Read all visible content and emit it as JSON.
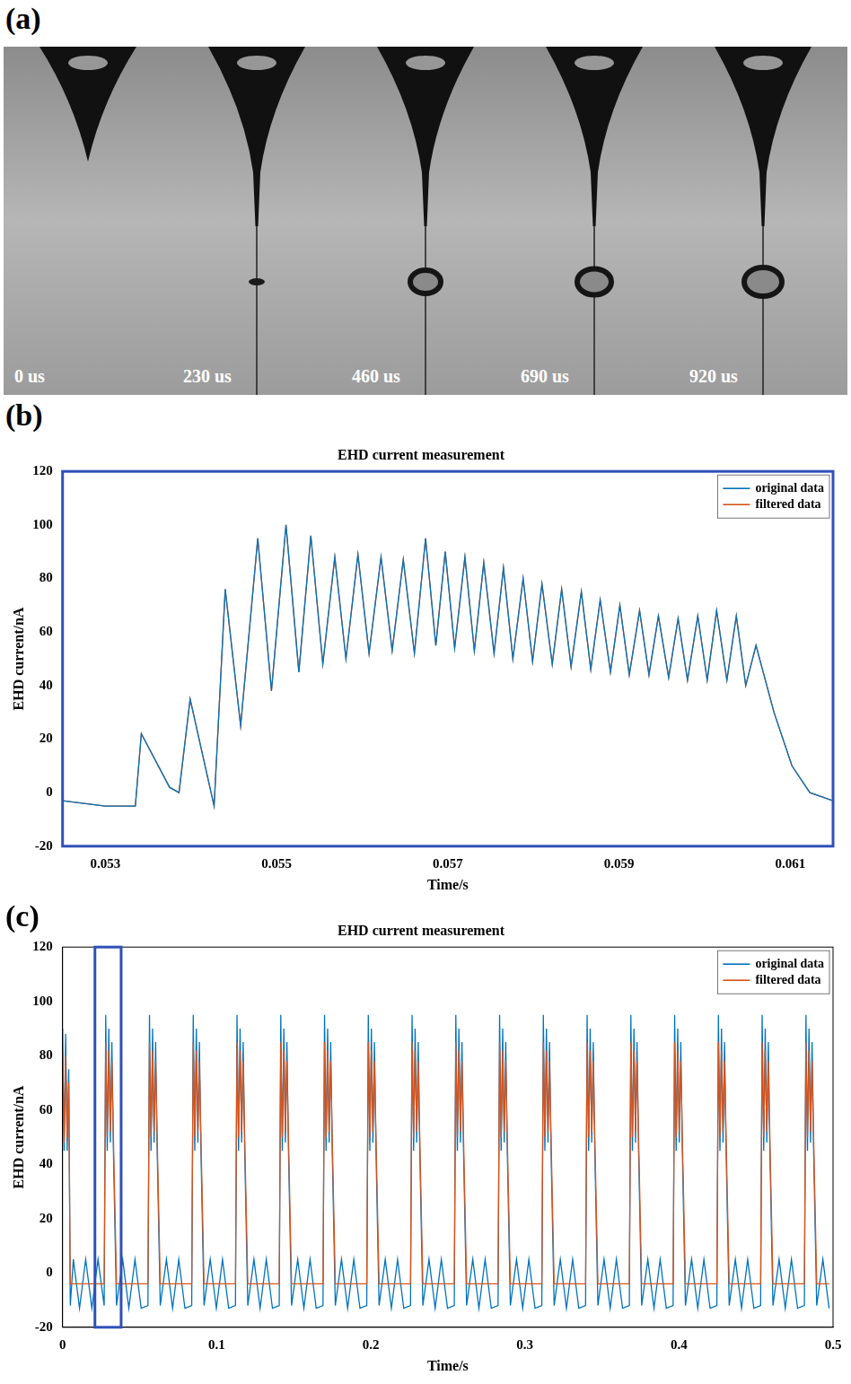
{
  "figure": {
    "panels": [
      "(a)",
      "(b)",
      "(c)"
    ],
    "frames": [
      "0 us",
      "230 us",
      "460 us",
      "690 us",
      "920 us"
    ]
  },
  "chart_data": [
    {
      "type": "line",
      "title": "EHD current measurement",
      "x_label": "Time/s",
      "y_label": "EHD current/nA",
      "x": [
        0.0525,
        0.053,
        0.05335,
        0.05342,
        0.05375,
        0.05386,
        0.05399,
        0.05427,
        0.0544,
        0.05458,
        0.05478,
        0.05494,
        0.05511,
        0.05526,
        0.0554,
        0.05554,
        0.05568,
        0.05581,
        0.05595,
        0.05608,
        0.05622,
        0.05635,
        0.05648,
        0.05661,
        0.05674,
        0.05686,
        0.05697,
        0.05708,
        0.0572,
        0.05731,
        0.05742,
        0.05754,
        0.05765,
        0.05776,
        0.05788,
        0.05799,
        0.0581,
        0.05822,
        0.05833,
        0.05844,
        0.05856,
        0.05867,
        0.05878,
        0.0589,
        0.05901,
        0.05912,
        0.05924,
        0.05935,
        0.05946,
        0.05958,
        0.05969,
        0.0598,
        0.05992,
        0.06003,
        0.06014,
        0.06026,
        0.06037,
        0.06048,
        0.0606,
        0.06081,
        0.06102,
        0.06123,
        0.0615
      ],
      "series": [
        {
          "name": "original data",
          "color": "#0072bd",
          "values": [
            -3,
            -5,
            -5,
            22,
            2,
            0,
            35,
            -5,
            76,
            25,
            95,
            38,
            100,
            45,
            96,
            48,
            88,
            50,
            89,
            52,
            88,
            53,
            87,
            52,
            95,
            55,
            90,
            54,
            88,
            53,
            86,
            52,
            84,
            50,
            80,
            49,
            78,
            48,
            76,
            47,
            75,
            46,
            72,
            45,
            70,
            44,
            68,
            44,
            66,
            43,
            65,
            42,
            66,
            42,
            68,
            42,
            66,
            40,
            55,
            30,
            10,
            0,
            -3
          ]
        },
        {
          "name": "filtered data",
          "color": "#d95319",
          "values": [
            -3,
            -5,
            -5,
            22,
            2,
            0,
            35,
            -5,
            76,
            25,
            95,
            38,
            100,
            45,
            96,
            48,
            88,
            50,
            89,
            52,
            88,
            53,
            87,
            52,
            95,
            55,
            90,
            54,
            88,
            53,
            86,
            52,
            84,
            50,
            80,
            49,
            78,
            48,
            76,
            47,
            75,
            46,
            72,
            45,
            70,
            44,
            68,
            44,
            66,
            43,
            65,
            42,
            66,
            42,
            68,
            42,
            66,
            40,
            55,
            30,
            10,
            0,
            -3
          ]
        }
      ],
      "xlim": [
        0.0525,
        0.0615
      ],
      "xticks": [
        0.053,
        0.055,
        0.057,
        0.059,
        0.061
      ],
      "ylim": [
        -20,
        120
      ],
      "yticks": [
        -20,
        0,
        20,
        40,
        60,
        80,
        100,
        120
      ],
      "grid": false,
      "legend": "upper right"
    },
    {
      "type": "line",
      "title": "EHD current measurement",
      "x_label": "Time/s",
      "y_label": "EHD current/nA",
      "x": [
        0,
        0.001,
        0.002,
        0.003,
        0.004,
        0.005,
        0.007,
        0.011,
        0.015,
        0.019,
        0.023,
        0.027,
        0.028,
        0.029,
        0.03,
        0.031,
        0.032,
        0.033,
        0.035,
        0.039,
        0.043,
        0.047,
        0.051,
        0.0554,
        0.0564,
        0.0574,
        0.0584,
        0.0594,
        0.0604,
        0.0614,
        0.0634,
        0.0674,
        0.0714,
        0.0754,
        0.0794,
        0.0838,
        0.0848,
        0.0858,
        0.0868,
        0.0878,
        0.0888,
        0.0898,
        0.0918,
        0.0958,
        0.0998,
        0.1038,
        0.1078,
        0.1122,
        0.1132,
        0.1142,
        0.1152,
        0.1162,
        0.1172,
        0.1182,
        0.1202,
        0.1242,
        0.1282,
        0.1322,
        0.1362,
        0.1406,
        0.1416,
        0.1426,
        0.1436,
        0.1446,
        0.1456,
        0.1466,
        0.1486,
        0.1526,
        0.1566,
        0.1606,
        0.1646,
        0.169,
        0.17,
        0.171,
        0.172,
        0.173,
        0.174,
        0.175,
        0.177,
        0.181,
        0.185,
        0.189,
        0.193,
        0.1974,
        0.1984,
        0.1994,
        0.2004,
        0.2014,
        0.2024,
        0.2034,
        0.2054,
        0.2094,
        0.2134,
        0.2174,
        0.2214,
        0.2258,
        0.2268,
        0.2278,
        0.2288,
        0.2298,
        0.2308,
        0.2318,
        0.2338,
        0.2378,
        0.2418,
        0.2458,
        0.2498,
        0.2542,
        0.2552,
        0.2562,
        0.2572,
        0.2582,
        0.2592,
        0.2602,
        0.2622,
        0.2662,
        0.2702,
        0.2742,
        0.2782,
        0.2826,
        0.2836,
        0.2846,
        0.2856,
        0.2866,
        0.2876,
        0.2886,
        0.2906,
        0.2946,
        0.2986,
        0.3026,
        0.3066,
        0.311,
        0.312,
        0.313,
        0.314,
        0.315,
        0.316,
        0.317,
        0.319,
        0.323,
        0.327,
        0.331,
        0.335,
        0.3394,
        0.3404,
        0.3414,
        0.3424,
        0.3434,
        0.3444,
        0.3454,
        0.3474,
        0.3514,
        0.3554,
        0.3594,
        0.3634,
        0.3678,
        0.3688,
        0.3698,
        0.3708,
        0.3718,
        0.3728,
        0.3738,
        0.3758,
        0.3798,
        0.3838,
        0.3878,
        0.3918,
        0.3962,
        0.3972,
        0.3982,
        0.3992,
        0.4002,
        0.4012,
        0.4022,
        0.4042,
        0.4082,
        0.4122,
        0.4162,
        0.4202,
        0.4246,
        0.4256,
        0.4266,
        0.4276,
        0.4286,
        0.4296,
        0.4306,
        0.4326,
        0.4366,
        0.4406,
        0.4446,
        0.4486,
        0.453,
        0.454,
        0.455,
        0.456,
        0.457,
        0.458,
        0.459,
        0.461,
        0.465,
        0.469,
        0.473,
        0.477,
        0.4814,
        0.4824,
        0.4834,
        0.4844,
        0.4854,
        0.4864,
        0.4874,
        0.4894,
        0.4934,
        0.4974
      ],
      "series": [
        {
          "name": "original data",
          "color": "#0072bd",
          "values": [
            90,
            45,
            88,
            45,
            75,
            -12,
            5,
            -13,
            5,
            -13,
            5,
            -12,
            95,
            45,
            90,
            48,
            85,
            45,
            -12,
            5,
            -13,
            5,
            -13,
            -12,
            95,
            45,
            90,
            48,
            85,
            45,
            -12,
            5,
            -13,
            5,
            -13,
            -12,
            95,
            45,
            90,
            48,
            85,
            45,
            -12,
            5,
            -13,
            5,
            -13,
            -12,
            95,
            45,
            90,
            48,
            85,
            45,
            -12,
            5,
            -13,
            5,
            -13,
            -12,
            95,
            45,
            90,
            48,
            85,
            45,
            -12,
            5,
            -13,
            5,
            -13,
            -12,
            95,
            45,
            90,
            48,
            85,
            45,
            -12,
            5,
            -13,
            5,
            -13,
            -12,
            95,
            45,
            90,
            48,
            85,
            45,
            -12,
            5,
            -13,
            5,
            -13,
            -12,
            95,
            45,
            90,
            48,
            85,
            45,
            -12,
            5,
            -13,
            5,
            -13,
            -12,
            95,
            45,
            90,
            48,
            85,
            45,
            -12,
            5,
            -13,
            5,
            -13,
            -12,
            95,
            45,
            90,
            48,
            85,
            45,
            -12,
            5,
            -13,
            5,
            -13,
            -12,
            95,
            45,
            90,
            48,
            85,
            45,
            -12,
            5,
            -13,
            5,
            -13,
            -12,
            95,
            45,
            90,
            48,
            85,
            45,
            -12,
            5,
            -13,
            5,
            -13,
            -12,
            95,
            45,
            90,
            48,
            85,
            45,
            -12,
            5,
            -13,
            5,
            -13,
            -12,
            95,
            45,
            90,
            48,
            85,
            45,
            -12,
            5,
            -13,
            5,
            -13,
            -12,
            95,
            45,
            90,
            48,
            85,
            45,
            -12,
            5,
            -13,
            5,
            -13,
            -12,
            95,
            45,
            90,
            48,
            85,
            45,
            -12,
            5,
            -13,
            5,
            -13,
            -12,
            95,
            45,
            90,
            48,
            85,
            45,
            -12,
            5,
            -13
          ]
        },
        {
          "name": "filtered data",
          "color": "#d95319",
          "values": [
            82,
            48,
            80,
            50,
            70,
            -4,
            -4,
            -4,
            -4,
            -4,
            -4,
            -4,
            85,
            50,
            82,
            52,
            78,
            50,
            -4,
            -4,
            -4,
            -4,
            -4,
            -4,
            85,
            50,
            82,
            52,
            78,
            50,
            -4,
            -4,
            -4,
            -4,
            -4,
            -4,
            85,
            50,
            82,
            52,
            78,
            50,
            -4,
            -4,
            -4,
            -4,
            -4,
            -4,
            85,
            50,
            82,
            52,
            78,
            50,
            -4,
            -4,
            -4,
            -4,
            -4,
            -4,
            85,
            50,
            82,
            52,
            78,
            50,
            -4,
            -4,
            -4,
            -4,
            -4,
            -4,
            85,
            50,
            82,
            52,
            78,
            50,
            -4,
            -4,
            -4,
            -4,
            -4,
            -4,
            85,
            50,
            82,
            52,
            78,
            50,
            -4,
            -4,
            -4,
            -4,
            -4,
            -4,
            85,
            50,
            82,
            52,
            78,
            50,
            -4,
            -4,
            -4,
            -4,
            -4,
            -4,
            85,
            50,
            82,
            52,
            78,
            50,
            -4,
            -4,
            -4,
            -4,
            -4,
            -4,
            85,
            50,
            82,
            52,
            78,
            50,
            -4,
            -4,
            -4,
            -4,
            -4,
            -4,
            85,
            50,
            82,
            52,
            78,
            50,
            -4,
            -4,
            -4,
            -4,
            -4,
            -4,
            85,
            50,
            82,
            52,
            78,
            50,
            -4,
            -4,
            -4,
            -4,
            -4,
            -4,
            85,
            50,
            82,
            52,
            78,
            50,
            -4,
            -4,
            -4,
            -4,
            -4,
            -4,
            85,
            50,
            82,
            52,
            78,
            50,
            -4,
            -4,
            -4,
            -4,
            -4,
            -4,
            85,
            50,
            82,
            52,
            78,
            50,
            -4,
            -4,
            -4,
            -4,
            -4,
            -4,
            85,
            50,
            82,
            52,
            78,
            50,
            -4,
            -4,
            -4,
            -4,
            -4,
            -4,
            85,
            50,
            82,
            52,
            78,
            50,
            -4,
            -4,
            -4
          ]
        }
      ],
      "xlim": [
        0,
        0.5
      ],
      "xticks": [
        0,
        0.1,
        0.2,
        0.3,
        0.4,
        0.5
      ],
      "ylim": [
        -20,
        120
      ],
      "yticks": [
        -20,
        0,
        20,
        40,
        60,
        80,
        100,
        120
      ],
      "zoom_range": [
        0.021,
        0.038
      ],
      "grid": false,
      "legend": "upper right"
    }
  ]
}
